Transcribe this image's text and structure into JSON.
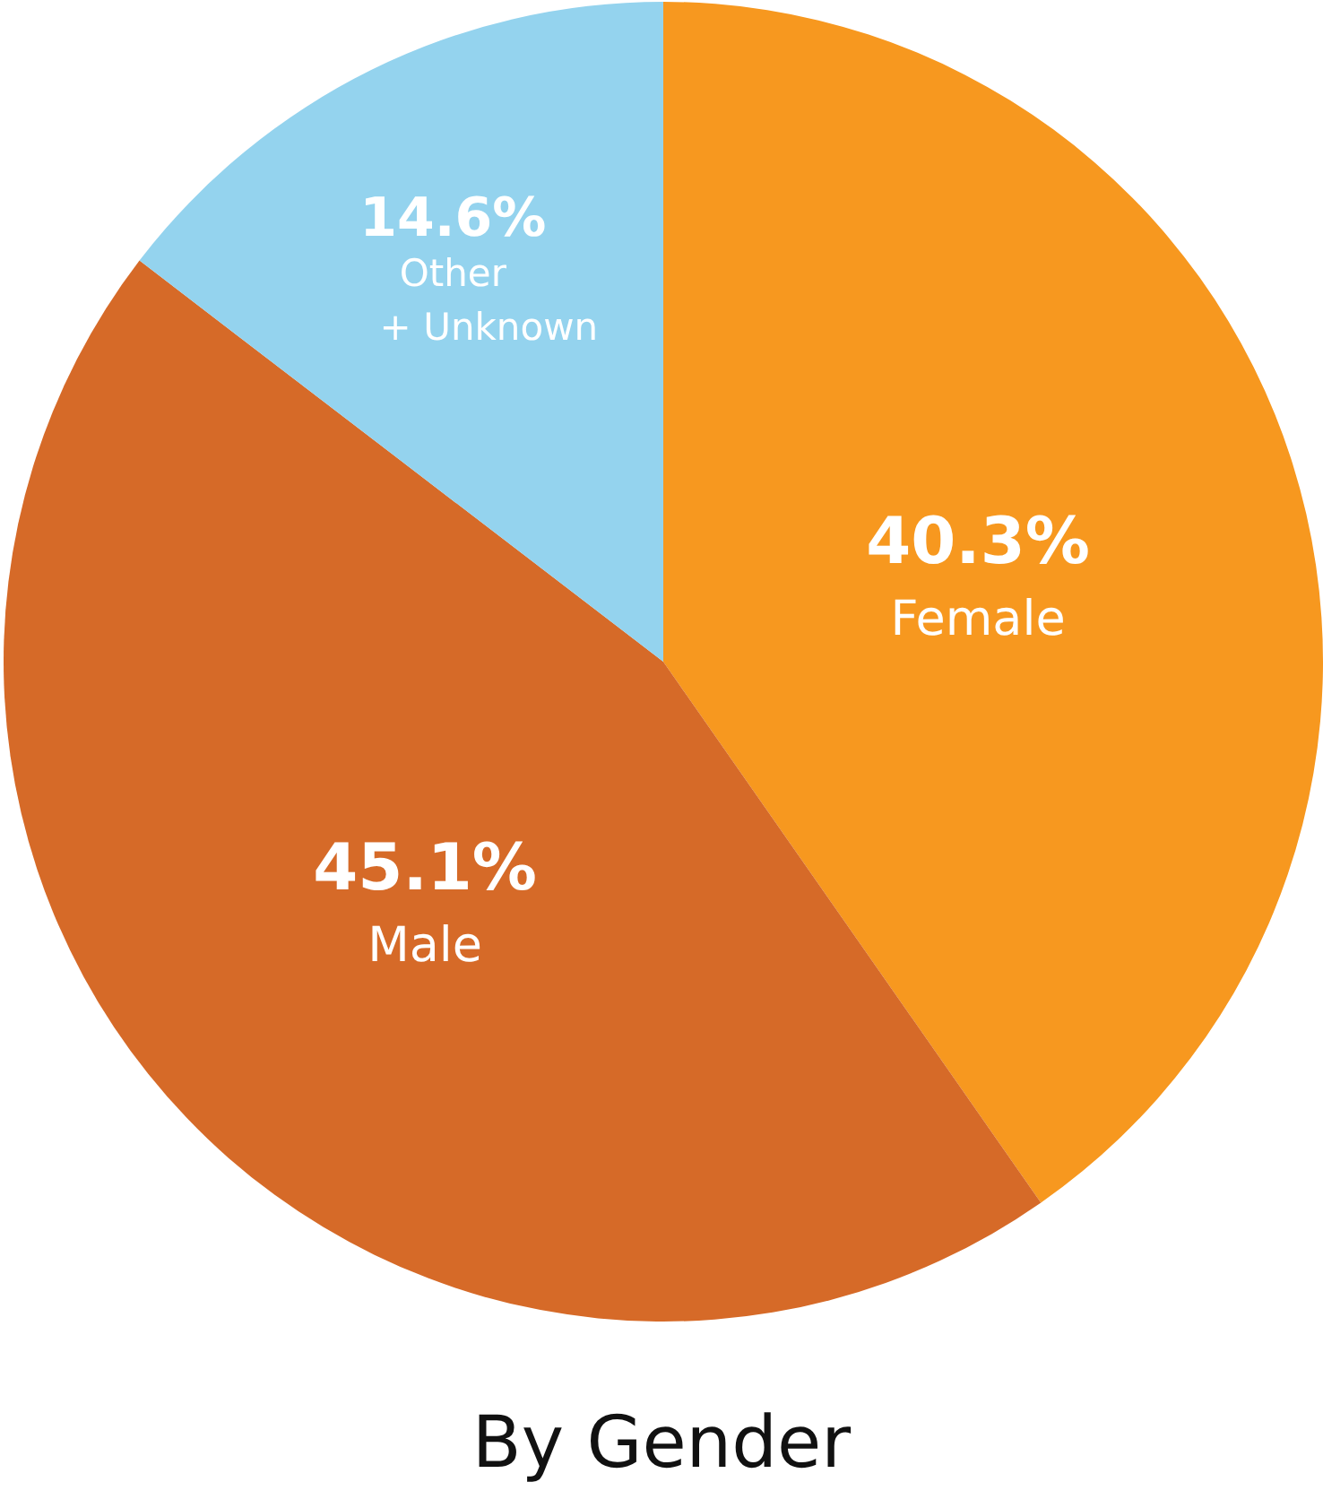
{
  "chart_data": {
    "type": "pie",
    "title": "By Gender",
    "categories": [
      "Female",
      "Male",
      "Other + Unknown"
    ],
    "values": [
      40.3,
      45.1,
      14.6
    ],
    "value_labels": [
      "40.3%",
      "45.1%",
      "14.6%"
    ],
    "colors": [
      "#f7981f",
      "#d66a28",
      "#94d3ee"
    ]
  }
}
